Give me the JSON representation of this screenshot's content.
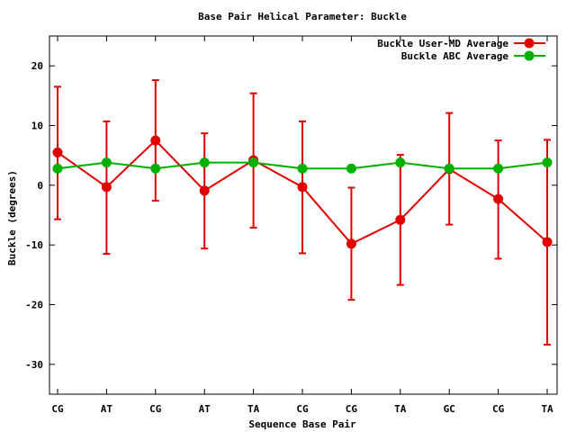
{
  "chart_data": {
    "type": "line",
    "title": "Base Pair Helical Parameter: Buckle",
    "xlabel": "Sequence Base Pair",
    "ylabel": "Buckle (degrees)",
    "categories": [
      "CG",
      "AT",
      "CG",
      "AT",
      "TA",
      "CG",
      "CG",
      "TA",
      "GC",
      "CG",
      "TA"
    ],
    "ylim": [
      -35,
      25
    ],
    "yticks": [
      -30,
      -20,
      -10,
      0,
      10,
      20
    ],
    "ytick_labels": [
      "-30",
      "-20",
      "-10",
      "0",
      "10",
      "20"
    ],
    "grid": false,
    "legend_position": "top-right",
    "series": [
      {
        "name": "Buckle User-MD Average",
        "color": "#e00000",
        "values": [
          5.5,
          -0.3,
          7.5,
          -0.9,
          4.2,
          -0.3,
          -9.8,
          -5.8,
          2.7,
          -2.3,
          -9.5
        ],
        "err_low": [
          -5.7,
          -11.5,
          -2.6,
          -10.6,
          -7.1,
          -11.4,
          -19.2,
          -16.7,
          -6.6,
          -12.3,
          -26.7
        ],
        "err_high": [
          16.5,
          10.7,
          17.6,
          8.7,
          15.4,
          10.7,
          -0.4,
          5.1,
          12.1,
          7.5,
          7.6
        ]
      },
      {
        "name": "Buckle ABC Average",
        "color": "#00b000",
        "values": [
          2.8,
          3.8,
          2.8,
          3.8,
          3.8,
          2.8,
          2.8,
          3.8,
          2.8,
          2.8,
          3.8
        ]
      }
    ]
  }
}
